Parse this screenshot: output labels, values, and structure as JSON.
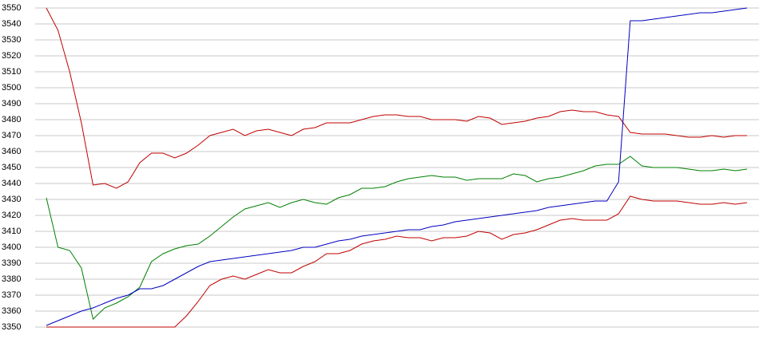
{
  "chart_data": {
    "type": "line",
    "categories": [
      null,
      null,
      null,
      null,
      null,
      null,
      null,
      null,
      null,
      null,
      null,
      null,
      null,
      null,
      null,
      null,
      null,
      null,
      null,
      null,
      null,
      null,
      null,
      null,
      null,
      null,
      null,
      null,
      null,
      null,
      null,
      null,
      null,
      null,
      null,
      null,
      null,
      null,
      null,
      null,
      null,
      null,
      null,
      null,
      null,
      null,
      null,
      null,
      null,
      null,
      null,
      null,
      null,
      null,
      null,
      null,
      null,
      null,
      null,
      null,
      null
    ],
    "series": [
      {
        "color": "#c00000",
        "values": [
          3550,
          3536,
          3510,
          3478,
          3439,
          3440,
          3437,
          3441,
          3453,
          3459,
          3459,
          3456,
          3459,
          3464,
          3470,
          3472,
          3474,
          3470,
          3473,
          3474,
          3472,
          3470,
          3474,
          3475,
          3478,
          3478,
          3478,
          3480,
          3482,
          3483,
          3483,
          3482,
          3482,
          3480,
          3480,
          3480,
          3479,
          3482,
          3481,
          3477,
          3478,
          3479,
          3481,
          3482,
          3485,
          3486,
          3485,
          3485,
          3483,
          3482,
          3472,
          3471,
          3471,
          3471,
          3470,
          3469,
          3469,
          3470,
          3469,
          3470,
          3470
        ]
      },
      {
        "color": "#008000",
        "values": [
          3431,
          3400,
          3398,
          3387,
          3355,
          3362,
          3365,
          3369,
          3375,
          3391,
          3396,
          3399,
          3401,
          3402,
          3407,
          3413,
          3419,
          3424,
          3426,
          3428,
          3425,
          3428,
          3430,
          3428,
          3427,
          3431,
          3433,
          3437,
          3437,
          3438,
          3441,
          3443,
          3444,
          3445,
          3444,
          3444,
          3442,
          3443,
          3443,
          3443,
          3446,
          3445,
          3441,
          3443,
          3444,
          3446,
          3448,
          3451,
          3452,
          3452,
          3457,
          3451,
          3450,
          3450,
          3450,
          3449,
          3448,
          3448,
          3449,
          3448,
          3449
        ]
      },
      {
        "color": "#0000c0",
        "values": [
          3351,
          3354,
          3357,
          3360,
          3362,
          3365,
          3368,
          3370,
          3374,
          3374,
          3376,
          3380,
          3384,
          3388,
          3391,
          3392,
          3393,
          3394,
          3395,
          3396,
          3397,
          3398,
          3400,
          3400,
          3402,
          3404,
          3405,
          3407,
          3408,
          3409,
          3410,
          3411,
          3411,
          3413,
          3414,
          3416,
          3417,
          3418,
          3419,
          3420,
          3421,
          3422,
          3423,
          3425,
          3426,
          3427,
          3428,
          3429,
          3429,
          3441,
          3542,
          3542,
          3543,
          3544,
          3545,
          3546,
          3547,
          3547,
          3548,
          3549,
          3550
        ]
      },
      {
        "color": "#c00000",
        "values": [
          3350,
          3350,
          3350,
          3350,
          3350,
          3350,
          3350,
          3350,
          3350,
          3350,
          3350,
          3350,
          3357,
          3366,
          3376,
          3380,
          3382,
          3380,
          3383,
          3386,
          3384,
          3384,
          3388,
          3391,
          3396,
          3396,
          3398,
          3402,
          3404,
          3405,
          3407,
          3406,
          3406,
          3404,
          3406,
          3406,
          3407,
          3410,
          3409,
          3405,
          3408,
          3409,
          3411,
          3414,
          3417,
          3418,
          3417,
          3417,
          3417,
          3421,
          3432,
          3430,
          3429,
          3429,
          3429,
          3428,
          3427,
          3427,
          3428,
          3427,
          3428
        ]
      }
    ],
    "ylim": [
      3350,
      3550
    ],
    "yticks": [
      3350,
      3360,
      3370,
      3380,
      3390,
      3400,
      3410,
      3420,
      3430,
      3440,
      3450,
      3460,
      3470,
      3480,
      3490,
      3500,
      3510,
      3520,
      3530,
      3540,
      3550
    ],
    "grid": true
  }
}
